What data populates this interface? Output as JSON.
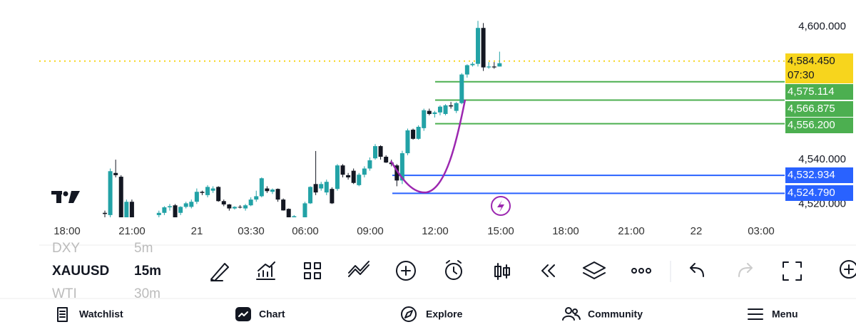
{
  "chart_data": {
    "type": "candlestick",
    "up_color": "#22a2a6",
    "down_color": "#131722",
    "ylim": [
      4514,
      4612
    ],
    "yticks": [
      {
        "value": 4600,
        "label": "4,600.000"
      },
      {
        "value": 4540,
        "label": "4,540.000"
      },
      {
        "value": 4520,
        "label": "4,520.000"
      }
    ],
    "time_labels": [
      "18:00",
      "21:00",
      "21",
      "03:30",
      "06:00",
      "09:00",
      "12:00",
      "15:00",
      "18:00",
      "21:00",
      "22",
      "03:00"
    ],
    "candles": [
      [
        4516,
        4517,
        4514,
        4515.5
      ],
      [
        4515,
        4536,
        4514,
        4534.8
      ],
      [
        4534,
        4540,
        4532,
        4533
      ],
      [
        4532.3,
        4533,
        4514,
        4514
      ],
      [
        4514,
        4522,
        4514,
        4521
      ],
      [
        4521,
        4522,
        4514,
        4514
      ],
      null,
      null,
      null,
      null,
      [
        4515,
        4517,
        4514,
        4516
      ],
      [
        4516,
        4519,
        4515,
        4518.5
      ],
      [
        4518.5,
        4520,
        4517,
        4519
      ],
      [
        4519.4,
        4520,
        4514,
        4514
      ],
      [
        4516,
        4519,
        4515,
        4518.7
      ],
      [
        4518.7,
        4521,
        4518,
        4520.3
      ],
      [
        4518.7,
        4522,
        4518,
        4521
      ],
      [
        4521,
        4527,
        4520,
        4525.5
      ],
      [
        4525.5,
        4526,
        4524,
        4525
      ],
      [
        4524,
        4528.5,
        4523,
        4527.7
      ],
      [
        4526,
        4528,
        4525,
        4527
      ],
      [
        4527.7,
        4528,
        4521,
        4521.3
      ],
      [
        4521.3,
        4522,
        4519,
        4519.8
      ],
      [
        4519.8,
        4520,
        4517,
        4518
      ],
      [
        4518,
        4519,
        4517.5,
        4518.7
      ],
      [
        4518.7,
        4519.5,
        4518,
        4518.5
      ],
      [
        4518,
        4520,
        4517,
        4519.4
      ],
      [
        4519.4,
        4523,
        4519,
        4522
      ],
      [
        4522,
        4526,
        4521,
        4523.5
      ],
      [
        4523.5,
        4532,
        4523,
        4531.6
      ],
      [
        4527,
        4528,
        4525,
        4525.8
      ],
      [
        4525.5,
        4527,
        4524.5,
        4526.5
      ],
      [
        4526.8,
        4527,
        4521,
        4522
      ],
      [
        4522,
        4522.5,
        4517,
        4517.1
      ],
      [
        4517.8,
        4518,
        4513.9,
        4513.9
      ],
      [
        4514,
        4515,
        4513.9,
        4514.5
      ],
      null,
      [
        4514,
        4521,
        4513.9,
        4520.3
      ],
      [
        4520.3,
        4528,
        4520,
        4527.7
      ],
      [
        4529,
        4543.9,
        4524,
        4525.2
      ],
      [
        4527,
        4530,
        4526,
        4529
      ],
      [
        4525.2,
        4531,
        4524,
        4530
      ],
      [
        4526.8,
        4527.5,
        4520,
        4520.3
      ],
      [
        4526.8,
        4538,
        4526,
        4537.4
      ],
      [
        4537.4,
        4538,
        4532,
        4533.2
      ],
      [
        4533,
        4534,
        4531,
        4532
      ],
      [
        4535,
        4536,
        4529,
        4529.5
      ],
      [
        4528.5,
        4534,
        4528,
        4533.2
      ],
      [
        4533.2,
        4537,
        4532,
        4536
      ],
      [
        4536,
        4541,
        4535,
        4539.7
      ],
      [
        4540.6,
        4547,
        4540,
        4546.1
      ],
      [
        4546.1,
        4546.5,
        4540,
        4541.3
      ],
      [
        4541.3,
        4542,
        4538.5,
        4538.7
      ],
      [
        4538.7,
        4540,
        4537,
        4538
      ],
      [
        4537.4,
        4538,
        4528,
        4530.6
      ],
      [
        4530.6,
        4544,
        4529,
        4542.9
      ],
      [
        4542.9,
        4554,
        4542,
        4553.2
      ],
      [
        4553.5,
        4554,
        4549,
        4549.4
      ],
      [
        4549.4,
        4555.5,
        4549,
        4554.8
      ],
      [
        4554.2,
        4563,
        4553,
        4562.3
      ],
      [
        4562,
        4563,
        4560,
        4560.6
      ],
      [
        4560.6,
        4562,
        4559,
        4561.3
      ],
      [
        4561.3,
        4564.5,
        4560,
        4563.9
      ],
      [
        4560.6,
        4565,
        4560,
        4564.5
      ],
      [
        4564.5,
        4566,
        4563,
        4564
      ],
      [
        4562,
        4566,
        4561,
        4565.5
      ],
      [
        4565.5,
        4579,
        4565,
        4578.4
      ],
      [
        4578.4,
        4583,
        4577,
        4582.6
      ],
      [
        4582.6,
        4584,
        4582,
        4583.2
      ],
      [
        4583.2,
        4602.6,
        4582,
        4599.4
      ],
      [
        4599.4,
        4601.6,
        4580,
        4581.6
      ],
      [
        4581.6,
        4584,
        4581,
        4582
      ],
      [
        4582,
        4584,
        4581,
        4581.6
      ],
      [
        4582,
        4588.7,
        4582,
        4583.5
      ]
    ],
    "price_lines": [
      {
        "value": 4584.45,
        "label": "4,584.450",
        "sublabel": "07:30",
        "color": "#f7d51d",
        "text_color": "#131722",
        "style": "dotted"
      },
      {
        "value": 4575.114,
        "label": "4,575.114",
        "color": "#4caf50",
        "text_color": "#ffffff",
        "style": "solid"
      },
      {
        "value": 4566.875,
        "label": "4,566.875",
        "color": "#4caf50",
        "text_color": "#ffffff",
        "style": "solid"
      },
      {
        "value": 4556.2,
        "label": "4,556.200",
        "color": "#4caf50",
        "text_color": "#ffffff",
        "style": "solid"
      },
      {
        "value": 4532.934,
        "label": "4,532.934",
        "color": "#2962ff",
        "text_color": "#ffffff",
        "style": "solid"
      },
      {
        "value": 4524.79,
        "label": "4,524.790",
        "color": "#2962ff",
        "text_color": "#ffffff",
        "style": "solid"
      }
    ]
  },
  "toolbar": {
    "prev_symbol": "DXY",
    "prev_interval": "5m",
    "symbol": "XAUUSD",
    "interval": "15m",
    "next_symbol": "WTI",
    "next_interval": "30m"
  },
  "nav": [
    "Watchlist",
    "Chart",
    "Explore",
    "Community",
    "Menu"
  ]
}
